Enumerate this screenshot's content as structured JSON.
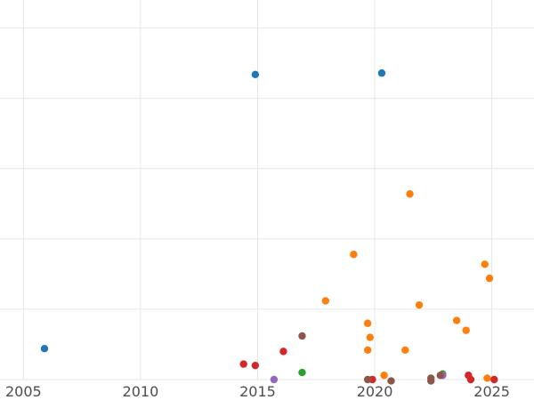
{
  "chart_data": {
    "type": "scatter",
    "title": "",
    "xlabel": "",
    "ylabel": "",
    "xlim": [
      2004.0,
      2026.8
    ],
    "ylim": [
      0,
      27
    ],
    "x_ticks": [
      2005,
      2010,
      2015,
      2020,
      2025
    ],
    "x_tick_labels": [
      "2005",
      "2010",
      "2015",
      "2020",
      "2025"
    ],
    "y_gridlines": [
      0,
      5,
      10,
      15,
      20,
      25
    ],
    "grid": true,
    "legend": "none",
    "series": [
      {
        "color": "#1f77b4",
        "points": [
          [
            2005.9,
            2.2
          ],
          [
            2014.9,
            21.7
          ],
          [
            2020.3,
            21.8
          ]
        ]
      },
      {
        "color": "#ff7f0e",
        "points": [
          [
            2017.9,
            5.6
          ],
          [
            2019.1,
            8.9
          ],
          [
            2019.7,
            4.0
          ],
          [
            2019.8,
            3.0
          ],
          [
            2019.7,
            2.1
          ],
          [
            2020.4,
            0.3
          ],
          [
            2021.3,
            2.1
          ],
          [
            2021.5,
            13.2
          ],
          [
            2021.9,
            5.3
          ],
          [
            2023.5,
            4.2
          ],
          [
            2023.9,
            3.5
          ],
          [
            2024.7,
            8.2
          ],
          [
            2024.9,
            7.2
          ],
          [
            2024.8,
            0.1
          ]
        ]
      },
      {
        "color": "#2ca02c",
        "points": [
          [
            2016.9,
            0.5
          ],
          [
            2022.9,
            0.4
          ]
        ]
      },
      {
        "color": "#d62728",
        "points": [
          [
            2014.4,
            1.1
          ],
          [
            2014.9,
            1.0
          ],
          [
            2016.1,
            2.0
          ],
          [
            2019.9,
            0.0
          ],
          [
            2024.0,
            0.3
          ],
          [
            2024.1,
            0.0
          ],
          [
            2025.1,
            0.0
          ]
        ]
      },
      {
        "color": "#9467bd",
        "points": [
          [
            2015.7,
            0.0
          ],
          [
            2022.9,
            0.3
          ]
        ]
      },
      {
        "color": "#8c564b",
        "points": [
          [
            2016.9,
            3.1
          ],
          [
            2019.7,
            0.0
          ],
          [
            2020.7,
            -0.1
          ],
          [
            2022.4,
            0.1
          ],
          [
            2022.4,
            -0.1
          ],
          [
            2022.8,
            0.3
          ]
        ]
      }
    ]
  }
}
